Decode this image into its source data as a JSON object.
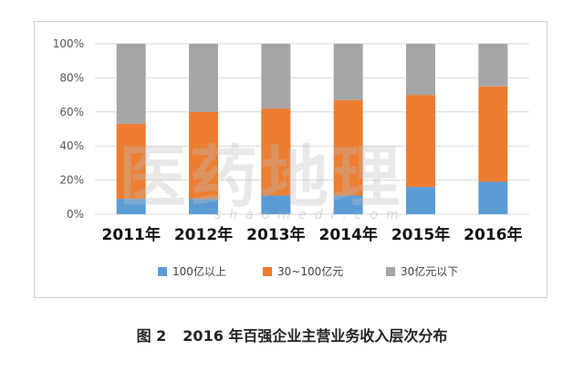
{
  "chart_data": {
    "type": "bar",
    "stacked": true,
    "categories": [
      "2011年",
      "2012年",
      "2013年",
      "2014年",
      "2015年",
      "2016年"
    ],
    "series": [
      {
        "name": "100亿以上",
        "color": "#5b9bd5",
        "values": [
          9,
          9,
          11,
          11,
          16,
          19
        ]
      },
      {
        "name": "30~100亿元",
        "color": "#ed7d31",
        "values": [
          44,
          51,
          51,
          56,
          54,
          56
        ]
      },
      {
        "name": "30亿元以下",
        "color": "#a5a5a5",
        "values": [
          47,
          40,
          38,
          33,
          30,
          25
        ]
      }
    ],
    "ylim": [
      0,
      100
    ],
    "yticks": [
      "0%",
      "20%",
      "40%",
      "60%",
      "80%",
      "100%"
    ],
    "grid": true,
    "legend_position": "bottom"
  },
  "watermark": {
    "main": "医药地理",
    "sub": "shaomedi.com"
  },
  "caption": {
    "label": "图 2",
    "text": "2016 年百强企业主营业务收入层次分布"
  }
}
